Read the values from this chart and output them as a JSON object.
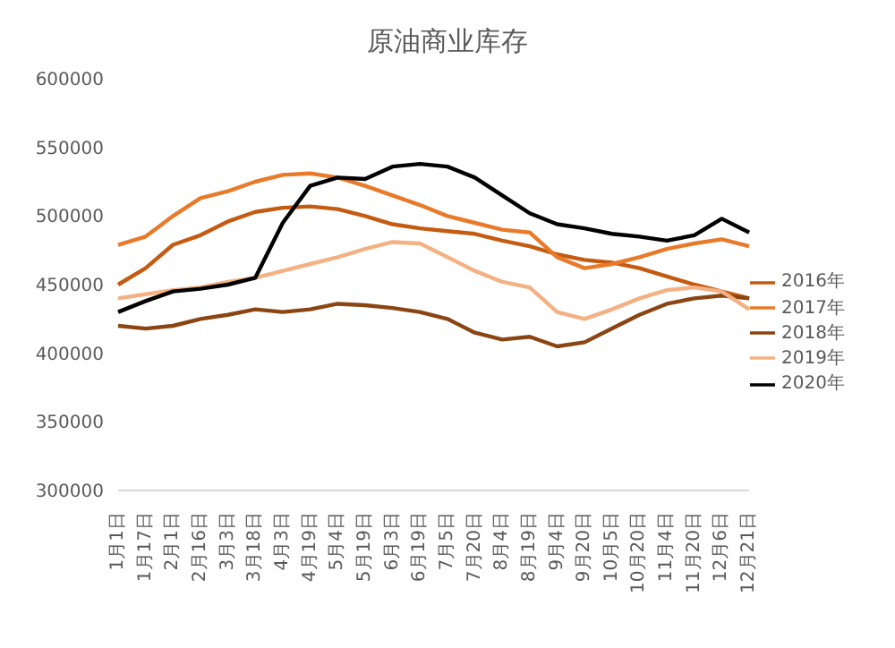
{
  "chart_data": {
    "type": "line",
    "title": "原油商业库存",
    "categories": [
      "1月1日",
      "1月17日",
      "2月1日",
      "2月16日",
      "3月3日",
      "3月18日",
      "4月3日",
      "4月19日",
      "5月4日",
      "5月19日",
      "6月3日",
      "6月19日",
      "7月5日",
      "7月20日",
      "8月4日",
      "8月19日",
      "9月4日",
      "9月20日",
      "10月5日",
      "10月20日",
      "11月4日",
      "11月20日",
      "12月6日",
      "12月21日"
    ],
    "series": [
      {
        "name": "2016年",
        "color": "#c55a11",
        "values": [
          450000,
          462000,
          479000,
          486000,
          496000,
          503000,
          506000,
          507000,
          505000,
          500000,
          494000,
          491000,
          489000,
          487000,
          482000,
          478000,
          472000,
          468000,
          466000,
          462000,
          456000,
          450000,
          445000,
          440000
        ]
      },
      {
        "name": "2017年",
        "color": "#e97a2a",
        "values": [
          479000,
          485000,
          500000,
          513000,
          518000,
          525000,
          530000,
          531000,
          528000,
          522000,
          515000,
          508000,
          500000,
          495000,
          490000,
          488000,
          470000,
          462000,
          465000,
          470000,
          476000,
          480000,
          483000,
          478000
        ]
      },
      {
        "name": "2018年",
        "color": "#8b4513",
        "values": [
          420000,
          418000,
          420000,
          425000,
          428000,
          432000,
          430000,
          432000,
          436000,
          435000,
          433000,
          430000,
          425000,
          415000,
          410000,
          412000,
          405000,
          408000,
          418000,
          428000,
          436000,
          440000,
          442000,
          440000
        ]
      },
      {
        "name": "2019年",
        "color": "#f4b183",
        "values": [
          440000,
          443000,
          446000,
          448000,
          452000,
          455000,
          460000,
          465000,
          470000,
          476000,
          481000,
          480000,
          470000,
          460000,
          452000,
          448000,
          430000,
          425000,
          432000,
          440000,
          446000,
          448000,
          445000,
          432000
        ]
      },
      {
        "name": "2020年",
        "color": "#000000",
        "values": [
          430000,
          438000,
          445000,
          447000,
          450000,
          455000,
          495000,
          522000,
          528000,
          527000,
          536000,
          538000,
          536000,
          528000,
          515000,
          502000,
          494000,
          491000,
          487000,
          485000,
          482000,
          486000,
          498000,
          488000
        ]
      }
    ],
    "ylim": [
      300000,
      600000
    ],
    "yticks": [
      300000,
      350000,
      400000,
      450000,
      500000,
      550000,
      600000
    ],
    "grid": false,
    "legend": "right",
    "marker": "none",
    "line_style": "solid"
  }
}
